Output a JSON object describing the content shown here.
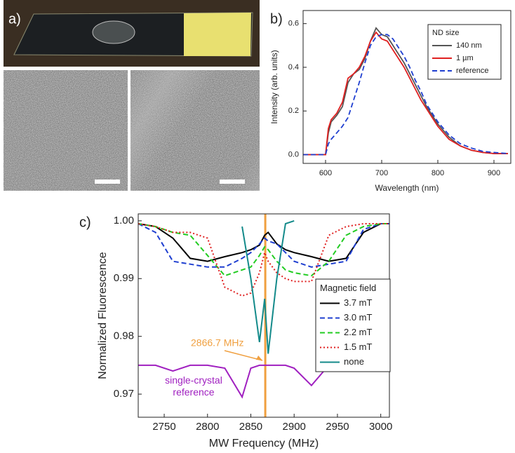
{
  "panel_a": {
    "label": "a)"
  },
  "chart_data": [
    {
      "type": "line",
      "label": "b)",
      "x_label": "Wavelength (nm)",
      "y_label": "Intensity (arb. units)",
      "x": [
        560,
        580,
        600,
        605,
        610,
        620,
        630,
        640,
        650,
        660,
        670,
        680,
        690,
        700,
        710,
        720,
        730,
        740,
        750,
        760,
        770,
        780,
        790,
        800,
        820,
        840,
        860,
        880,
        900,
        925
      ],
      "xlim": [
        560,
        930
      ],
      "xticks": [
        600,
        700,
        800,
        900
      ],
      "ylim": [
        -0.04,
        0.66
      ],
      "yticks": [
        {
          "value": 0,
          "label": "0.0"
        },
        0.2,
        0.4,
        0.6
      ],
      "legend_title": "ND size",
      "legend": "upper right",
      "series": [
        {
          "name": "140 nm",
          "color": "#555555",
          "dash": "solid",
          "values": [
            0,
            0,
            0,
            0.1,
            0.15,
            0.18,
            0.22,
            0.33,
            0.37,
            0.39,
            0.44,
            0.52,
            0.58,
            0.55,
            0.54,
            0.5,
            0.46,
            0.42,
            0.37,
            0.32,
            0.27,
            0.22,
            0.18,
            0.14,
            0.08,
            0.04,
            0.02,
            0.01,
            0.005,
            0.005
          ]
        },
        {
          "name": "1 µm",
          "color": "#e02020",
          "dash": "solid",
          "values": [
            0,
            0,
            0,
            0.12,
            0.16,
            0.19,
            0.24,
            0.35,
            0.37,
            0.4,
            0.45,
            0.52,
            0.56,
            0.53,
            0.52,
            0.48,
            0.44,
            0.4,
            0.35,
            0.3,
            0.25,
            0.21,
            0.17,
            0.13,
            0.07,
            0.04,
            0.02,
            0.01,
            0.005,
            0.005
          ]
        },
        {
          "name": "reference",
          "color": "#1f3fd0",
          "dash": "dashed",
          "values": [
            0,
            0,
            0,
            0.05,
            0.07,
            0.1,
            0.13,
            0.17,
            0.25,
            0.33,
            0.42,
            0.5,
            0.54,
            0.55,
            0.55,
            0.53,
            0.49,
            0.45,
            0.4,
            0.34,
            0.29,
            0.23,
            0.19,
            0.15,
            0.09,
            0.05,
            0.03,
            0.015,
            0.01,
            0.005
          ]
        }
      ]
    },
    {
      "type": "line",
      "label": "c)",
      "x_label": "MW Frequency (MHz)",
      "y_label": "Normalized Fluorescence",
      "x": [
        2720,
        2740,
        2760,
        2780,
        2800,
        2820,
        2840,
        2850,
        2860,
        2866,
        2870,
        2880,
        2890,
        2900,
        2920,
        2940,
        2960,
        2980,
        3000,
        3010
      ],
      "xlim": [
        2720,
        3010
      ],
      "xticks": [
        2750,
        2800,
        2850,
        2900,
        2950,
        3000
      ],
      "ylim": [
        0.966,
        1.0012
      ],
      "yticks": [
        0.97,
        0.98,
        0.99,
        {
          "value": 1,
          "label": "1.00"
        }
      ],
      "legend_title": "Magnetic field",
      "legend": "center right",
      "series": [
        {
          "name": "3.7 mT",
          "color": "#000000",
          "dash": "solid",
          "values": [
            0.9995,
            0.999,
            0.997,
            0.9935,
            0.993,
            0.9938,
            0.9945,
            0.995,
            0.9958,
            0.9975,
            0.998,
            0.996,
            0.995,
            0.9945,
            0.9938,
            0.993,
            0.9935,
            0.998,
            0.9995,
            0.9995
          ]
        },
        {
          "name": "3.0 mT",
          "color": "#1f3fd0",
          "dash": "dashed",
          "values": [
            0.9995,
            0.998,
            0.993,
            0.9925,
            0.992,
            0.992,
            0.9935,
            0.9945,
            0.996,
            0.997,
            0.9965,
            0.996,
            0.9945,
            0.993,
            0.992,
            0.9925,
            0.993,
            0.9985,
            0.9995,
            0.9995
          ]
        },
        {
          "name": "2.2 mT",
          "color": "#22cc22",
          "dash": "dashed",
          "values": [
            0.9995,
            0.999,
            0.998,
            0.9975,
            0.994,
            0.9905,
            0.9915,
            0.992,
            0.994,
            0.9955,
            0.995,
            0.993,
            0.9915,
            0.991,
            0.9905,
            0.993,
            0.9975,
            0.999,
            0.9995,
            0.9995
          ]
        },
        {
          "name": "1.5 mT",
          "color": "#e02020",
          "dash": "dotted",
          "values": [
            0.9995,
            0.999,
            0.998,
            0.998,
            0.997,
            0.9885,
            0.987,
            0.9875,
            0.991,
            0.9945,
            0.993,
            0.991,
            0.99,
            0.9895,
            0.9895,
            0.9975,
            0.999,
            0.9995,
            0.9995,
            0.9995
          ]
        },
        {
          "name": "none",
          "color": "#138a8a",
          "dash": "solid",
          "values": [
            null,
            null,
            null,
            null,
            null,
            null,
            0.999,
            0.99,
            0.979,
            0.9865,
            0.977,
            0.99,
            0.9995,
            1,
            null,
            null,
            null,
            null,
            null,
            null
          ]
        }
      ],
      "reference_curve": {
        "name": "single-crystal reference",
        "color": "#a020c0",
        "values": [
          0.975,
          0.975,
          0.974,
          0.975,
          0.975,
          0.9745,
          0.9695,
          0.9745,
          0.975,
          0.975,
          0.975,
          0.975,
          0.975,
          0.9745,
          0.9715,
          0.975,
          0.975,
          0.974,
          0.975,
          0.975
        ]
      },
      "marker": {
        "value": 2866.7,
        "label": "2866.7 MHz",
        "color": "#f0a040"
      }
    }
  ]
}
